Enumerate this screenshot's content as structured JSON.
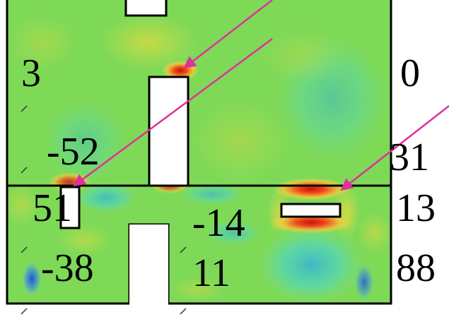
{
  "figure": {
    "colors": {
      "background": "#ffffff",
      "field": "#7ed957",
      "outline": "#000000",
      "arrow": "#e0309a",
      "hot_red": "#e8321a",
      "hot_yellow": "#f3d23a",
      "cold_cyan": "#3fd3e0",
      "cold_blue": "#2f6fe6"
    },
    "labels": {
      "upper_left": "3",
      "right_top": "0",
      "mid_left": "-52",
      "right_mid": "31",
      "lower_left_top": "51",
      "lower_center": "-14",
      "right_lower": "13",
      "lower_left_bottom": "-38",
      "lower_center_bottom": "11",
      "right_bottom": "88"
    }
  }
}
